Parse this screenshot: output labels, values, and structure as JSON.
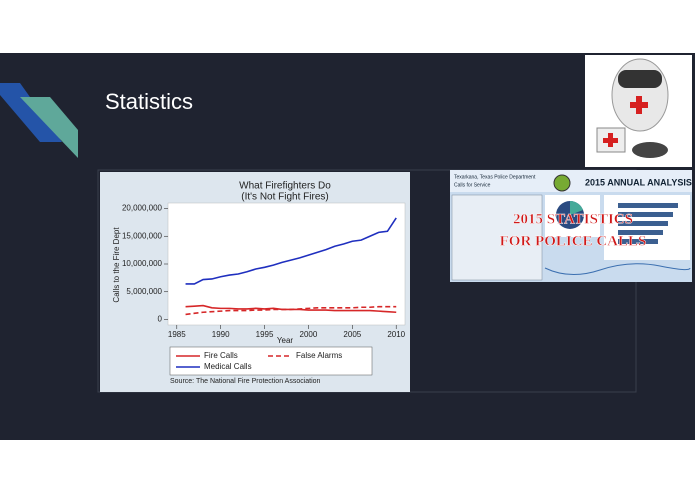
{
  "slide": {
    "title": "Statistics"
  },
  "image": {
    "header": "Texarkana, Texas Police Department",
    "subheader": "Calls for Service",
    "banner": "2015 ANNUAL ANALYSIS",
    "overlay": [
      "2015 STATISTICS",
      "FOR POLICE CALLS"
    ]
  },
  "chart_data": {
    "type": "line",
    "title": "What Firefighters Do",
    "subtitle": "(It's Not Fight Fires)",
    "x_label": "Year",
    "y_label": "Calls to the Fire Dept",
    "source": "Source: The National Fire Protection Association",
    "x": [
      1986,
      1987,
      1988,
      1989,
      1990,
      1991,
      1992,
      1993,
      1994,
      1995,
      1996,
      1997,
      1998,
      1999,
      2000,
      2001,
      2002,
      2003,
      2004,
      2005,
      2006,
      2007,
      2008,
      2009,
      2010
    ],
    "series": [
      {
        "name": "Fire Calls",
        "color": "#d62728",
        "style": "solid",
        "values": [
          2300000,
          2400000,
          2500000,
          2100000,
          2000000,
          2000000,
          1900000,
          1900000,
          2000000,
          1900000,
          2000000,
          1800000,
          1800000,
          1800000,
          1700000,
          1700000,
          1700000,
          1600000,
          1600000,
          1600000,
          1600000,
          1600000,
          1500000,
          1400000,
          1300000
        ]
      },
      {
        "name": "False Alarms",
        "color": "#d62728",
        "style": "dashed",
        "values": [
          900000,
          1100000,
          1300000,
          1400000,
          1500000,
          1600000,
          1600000,
          1600000,
          1700000,
          1700000,
          1800000,
          1800000,
          1800000,
          1900000,
          2000000,
          2100000,
          2100000,
          2100000,
          2100000,
          2100000,
          2200000,
          2200000,
          2300000,
          2300000,
          2300000
        ]
      },
      {
        "name": "Medical Calls",
        "color": "#1f2fbf",
        "style": "solid",
        "values": [
          6400000,
          6400000,
          7200000,
          7300000,
          7700000,
          8000000,
          8200000,
          8600000,
          9100000,
          9400000,
          9800000,
          10300000,
          10700000,
          11100000,
          11600000,
          12100000,
          12600000,
          13200000,
          13600000,
          14100000,
          14300000,
          15000000,
          15700000,
          15900000,
          18300000
        ]
      }
    ],
    "xlim": [
      1984,
      2011
    ],
    "xticks": [
      1985,
      1990,
      1995,
      2000,
      2005,
      2010
    ],
    "ylim": [
      -1000000,
      21000000
    ],
    "yticks": [
      0,
      {
        "value": 5000000,
        "label": "5,000,000"
      },
      {
        "value": 10000000,
        "label": "10,000,000"
      },
      {
        "value": 15000000,
        "label": "15,000,000"
      },
      {
        "value": 20000000,
        "label": "20,000,000"
      }
    ],
    "legend": "bottom"
  }
}
